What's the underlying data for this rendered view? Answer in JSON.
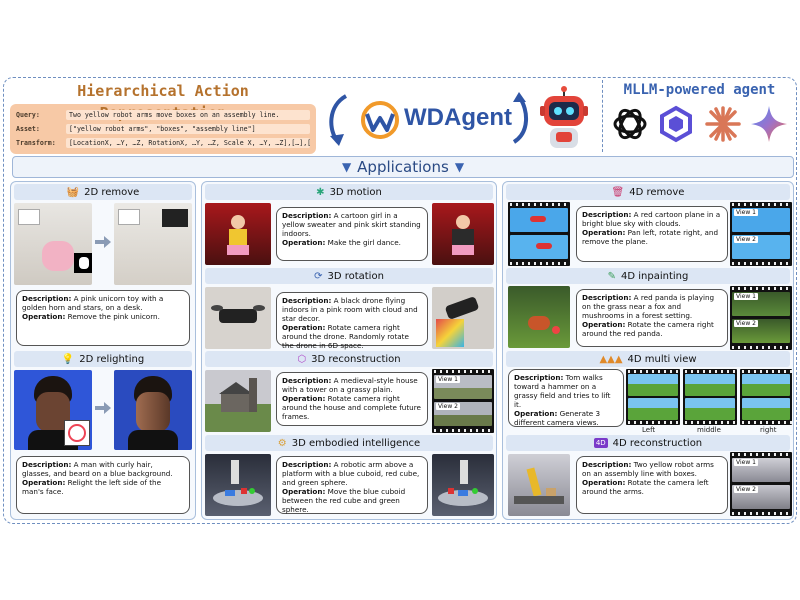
{
  "header": {
    "har_title": "Hierarchical Action Representation",
    "query_label": "Query:",
    "query_value": "Two yellow robot arms move boxes on an assembly line.",
    "asset_label": "Asset:",
    "asset_value": "[\"yellow robot arms\", \"boxes\", \"assembly line\"]",
    "transform_label": "Transform:",
    "transform_value": "[LocationX, …Y, …Z, RotationX, …Y, …Z, Scale X, …Y, …Z],[…],[…]",
    "app_name": "WDAgent",
    "mllm_title": "MLLM-powered agent",
    "applications": "Applications"
  },
  "col1": {
    "remove2d": {
      "title": "2D remove",
      "desc_label": "Description:",
      "desc": "A pink unicorn toy with a golden horn and stars, on a desk.",
      "op_label": "Operation:",
      "op": "Remove the pink unicorn."
    },
    "relight2d": {
      "title": "2D relighting",
      "desc_label": "Description:",
      "desc": "A man with curly hair, glasses, and beard on a blue background.",
      "op_label": "Operation:",
      "op": "Relight the left side of the man's face."
    }
  },
  "col2": {
    "motion3d": {
      "title": "3D motion",
      "desc_label": "Description:",
      "desc": "A cartoon girl in a yellow sweater and pink skirt standing indoors.",
      "op_label": "Operation:",
      "op": "Make the girl dance."
    },
    "rotation3d": {
      "title": "3D rotation",
      "desc_label": "Description:",
      "desc": "A black drone flying indoors in a pink room with cloud and star decor.",
      "op_label": "Operation:",
      "op": "Rotate camera right around the drone.",
      "op2": "Randomly rotate the drone in 6D space."
    },
    "recon3d": {
      "title": "3D reconstruction",
      "desc_label": "Description:",
      "desc": "A medieval-style house with a tower on a grassy plain.",
      "op_label": "Operation:",
      "op": "Rotate camera right around the house and complete future frames.",
      "view1": "View 1",
      "view2": "View 2"
    },
    "embodied3d": {
      "title": "3D embodied intelligence",
      "desc_label": "Description:",
      "desc": "A robotic arm above a platform with a blue cuboid, red cube, and green sphere.",
      "op_label": "Operation:",
      "op": "Move the blue cuboid between the red cube and green sphere."
    }
  },
  "col3": {
    "remove4d": {
      "title": "4D remove",
      "desc_label": "Description:",
      "desc": "A red cartoon plane in a bright blue sky with clouds.",
      "op_label": "Operation:",
      "op": "Pan left, rotate right, and remove the plane.",
      "view1": "View 1",
      "view2": "View 2"
    },
    "inpaint4d": {
      "title": "4D inpainting",
      "desc_label": "Description:",
      "desc": "A red panda is playing on the grass near a fox and mushrooms in a forest setting.",
      "op_label": "Operation:",
      "op": "Rotate the camera right around the red panda.",
      "view1": "View 1",
      "view2": "View 2"
    },
    "multiview4d": {
      "title": "4D multi view",
      "desc_label": "Description:",
      "desc": "Tom walks toward a hammer on a grassy field and tries to lift it.",
      "op_label": "Operation:",
      "op": "Generate 3 different camera views.",
      "left": "Left",
      "middle": "middle",
      "right": "right"
    },
    "recon4d": {
      "title": "4D reconstruction",
      "desc_label": "Description:",
      "desc": "Two yellow robot arms on an assembly line with boxes.",
      "op_label": "Operation:",
      "op": "Rotate the camera left around the arms.",
      "view1": "View 1",
      "view2": "View 2"
    }
  },
  "colors": {
    "har_title": "#b5722d",
    "har_box": "#f7c9a6",
    "accent_blue": "#2f55a5",
    "section_header": "#dce6f4",
    "dashed_frame": "#6f8fc0"
  }
}
